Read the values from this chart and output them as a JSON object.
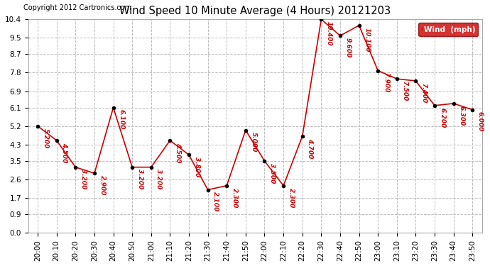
{
  "title": "Wind Speed 10 Minute Average (4 Hours) 20121203",
  "copyright": "Copyright 2012 Cartronics.com",
  "legend_label": "Wind  (mph)",
  "x_labels": [
    "20:00",
    "20:10",
    "20:20",
    "20:30",
    "20:40",
    "20:50",
    "21:00",
    "21:10",
    "21:20",
    "21:30",
    "21:40",
    "21:50",
    "22:00",
    "22:10",
    "22:20",
    "22:30",
    "22:40",
    "22:50",
    "23:00",
    "23:10",
    "23:20",
    "23:30",
    "23:40",
    "23:50"
  ],
  "y_values": [
    5.2,
    4.5,
    3.2,
    2.9,
    6.1,
    3.2,
    3.2,
    4.5,
    3.8,
    2.1,
    2.3,
    5.0,
    3.5,
    2.3,
    4.7,
    10.4,
    9.6,
    10.1,
    7.9,
    7.5,
    7.4,
    6.2,
    6.3,
    6.0
  ],
  "ylim_min": 0.0,
  "ylim_max": 10.4,
  "yticks": [
    0.0,
    0.9,
    1.7,
    2.6,
    3.5,
    4.3,
    5.2,
    6.1,
    6.9,
    7.8,
    8.7,
    9.5,
    10.4
  ],
  "line_color": "#cc0000",
  "marker_color": "#000000",
  "bg_color": "#ffffff",
  "grid_color": "#bbbbbb",
  "title_color": "#000000",
  "label_color": "#cc0000",
  "legend_bg": "#cc0000",
  "legend_text_color": "#ffffff"
}
